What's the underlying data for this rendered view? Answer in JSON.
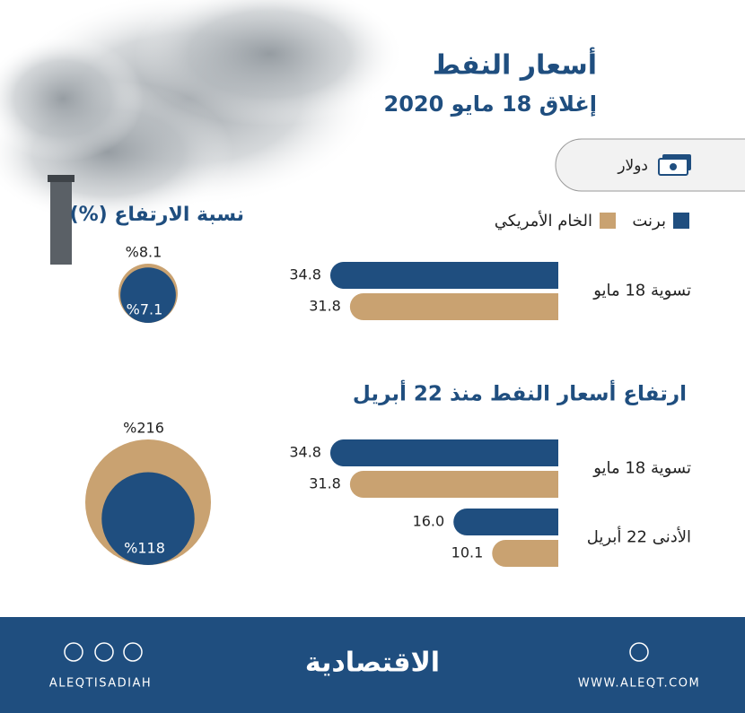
{
  "header": {
    "title": "أسعار النفط",
    "subtitle": "إغلاق 18 مايو 2020"
  },
  "unit_label": "دولار",
  "circles_title": "نسبة الارتفاع (%)",
  "section_title": "ارتفاع أسعار النفط منذ 22 أبريل",
  "chart_data": [
    {
      "type": "bar",
      "orientation": "horizontal",
      "categories": [
        "تسوية 18 مايو"
      ],
      "series": [
        {
          "name": "برنت",
          "color": "#1f4e7f",
          "values": [
            34.8
          ]
        },
        {
          "name": "الخام الأمريكي",
          "color": "#c9a271",
          "values": [
            31.8
          ]
        }
      ]
    },
    {
      "type": "bubble",
      "series": [
        {
          "color": "#c9a271",
          "values": [
            8.1
          ],
          "value_labels": [
            "%8.1"
          ]
        },
        {
          "color": "#1f4e7f",
          "values": [
            7.1
          ],
          "value_labels": [
            "%7.1"
          ]
        }
      ]
    },
    {
      "type": "bar",
      "orientation": "horizontal",
      "categories": [
        "تسوية 18 مايو",
        "الأدنى 22 أبريل"
      ],
      "series": [
        {
          "color": "#1f4e7f",
          "values": [
            34.8,
            16.0
          ],
          "value_labels": [
            "34.8",
            "16.0"
          ]
        },
        {
          "color": "#c9a271",
          "values": [
            31.8,
            10.1
          ]
        }
      ]
    },
    {
      "type": "bubble",
      "series": [
        {
          "color": "#c9a271",
          "values": [
            216
          ],
          "value_labels": [
            "%216"
          ]
        },
        {
          "color": "#1f4e7f",
          "values": [
            118
          ],
          "value_labels": [
            "%118"
          ]
        }
      ]
    }
  ],
  "footer": {
    "handle": "ALEQTISADIAH",
    "brand": "الاقتصادية",
    "website": "WWW.ALEQT.COM"
  }
}
